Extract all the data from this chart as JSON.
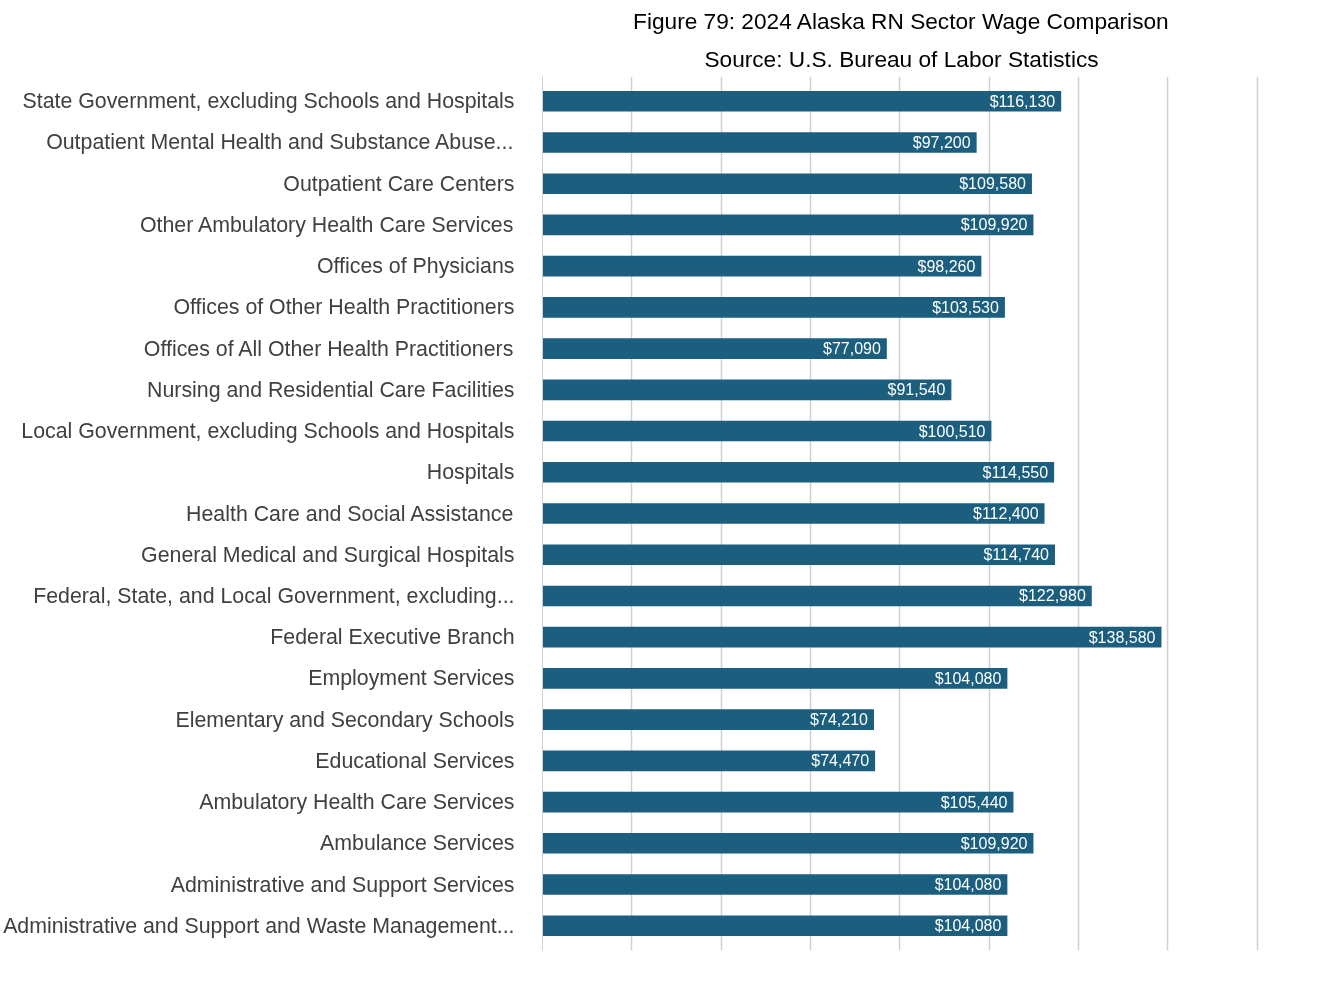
{
  "chart_data": {
    "type": "bar",
    "orientation": "horizontal",
    "title": "Figure 79: 2024 Alaska RN Sector Wage Comparison",
    "subtitle": "Source: U.S. Bureau of Labor Statistics",
    "categories": [
      "State Government, excluding Schools and Hospitals",
      "Outpatient Mental Health and Substance Abuse...",
      "Outpatient Care Centers",
      "Other Ambulatory Health Care Services",
      "Offices of Physicians",
      "Offices of Other Health Practitioners",
      "Offices of All Other Health Practitioners",
      "Nursing and Residential Care Facilities",
      "Local Government, excluding Schools and Hospitals",
      "Hospitals",
      "Health Care and Social Assistance",
      "General Medical and Surgical Hospitals",
      "Federal, State, and Local Government, excluding...",
      "Federal Executive Branch",
      "Employment Services",
      "Elementary and Secondary Schools",
      "Educational Services",
      "Ambulatory Health Care Services",
      "Ambulance Services",
      "Administrative and Support Services",
      "Administrative and Support and Waste Management..."
    ],
    "values": [
      116130,
      97200,
      109580,
      109920,
      98260,
      103530,
      77090,
      91540,
      100510,
      114550,
      112400,
      114740,
      122980,
      138580,
      104080,
      74210,
      74470,
      105440,
      109920,
      104080,
      104080
    ],
    "value_labels": [
      "$116,130",
      "$97,200",
      "$109,580",
      "$109,920",
      "$98,260",
      "$103,530",
      "$77,090",
      "$91,540",
      "$100,510",
      "$114,550",
      "$112,400",
      "$114,740",
      "$122,980",
      "$138,580",
      "$104,080",
      "$74,210",
      "$74,470",
      "$105,440",
      "$109,920",
      "$104,080",
      "$104,080"
    ],
    "color": "#1b5e7e",
    "tick_labels": "y",
    "grid": "x"
  }
}
